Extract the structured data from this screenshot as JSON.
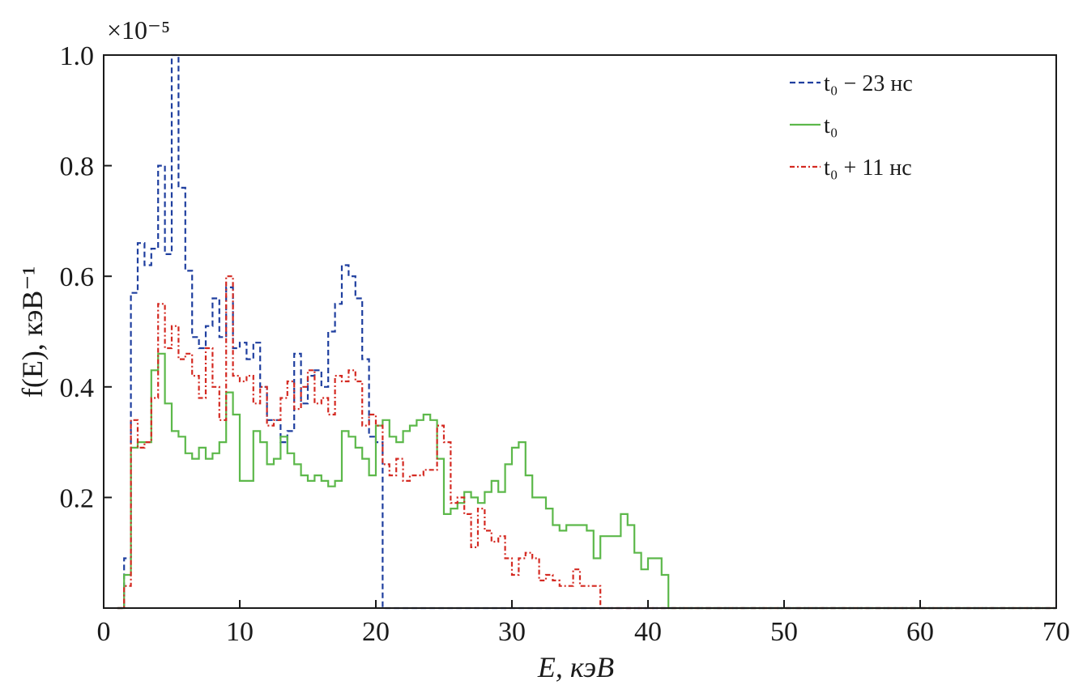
{
  "chart_data": {
    "type": "line",
    "title": "",
    "xlabel": "E, кэВ",
    "ylabel": "f(E), кэВ⁻¹",
    "xlim": [
      0,
      70
    ],
    "ylim": [
      0,
      1.0
    ],
    "y_multiplier": "×10⁻⁵",
    "x_ticks": [
      0,
      10,
      20,
      30,
      40,
      50,
      60,
      70
    ],
    "x_tick_labels": [
      "0",
      "10",
      "20",
      "30",
      "40",
      "50",
      "60",
      "70"
    ],
    "y_ticks": [
      0.2,
      0.4,
      0.6,
      0.8,
      1.0
    ],
    "y_tick_labels": [
      "0.2",
      "0.4",
      "0.6",
      "0.8",
      "1.0"
    ],
    "grid": false,
    "legend_position": "top-right",
    "step": "post",
    "series": [
      {
        "name": "t₀ − 23 нс",
        "color": "#1f3f9f",
        "dash": "dashed",
        "x": [
          1.0,
          1.5,
          2.0,
          2.5,
          3.0,
          3.5,
          4.0,
          4.5,
          5.0,
          5.5,
          6.0,
          6.5,
          7.0,
          7.5,
          8.0,
          8.5,
          9.0,
          9.5,
          10.0,
          10.5,
          11.0,
          11.5,
          12.0,
          12.5,
          13.0,
          13.5,
          14.0,
          14.5,
          15.0,
          15.5,
          16.0,
          16.5,
          17.0,
          17.5,
          18.0,
          18.5,
          19.0,
          19.5,
          20.0,
          20.5,
          21.0,
          70.0
        ],
        "values": [
          0.0,
          0.09,
          0.57,
          0.66,
          0.62,
          0.65,
          0.8,
          0.64,
          1.0,
          0.76,
          0.61,
          0.49,
          0.47,
          0.51,
          0.56,
          0.49,
          0.58,
          0.47,
          0.48,
          0.45,
          0.48,
          0.4,
          0.34,
          0.34,
          0.3,
          0.32,
          0.46,
          0.37,
          0.42,
          0.43,
          0.4,
          0.5,
          0.55,
          0.62,
          0.6,
          0.56,
          0.45,
          0.31,
          0.3,
          0.0,
          0.0,
          0.0
        ]
      },
      {
        "name": "t₀",
        "color": "#5cb84a",
        "dash": "solid",
        "x": [
          1.0,
          1.5,
          2.0,
          2.5,
          3.0,
          3.5,
          4.0,
          4.5,
          5.0,
          5.5,
          6.0,
          6.5,
          7.0,
          7.5,
          8.0,
          8.5,
          9.0,
          9.5,
          10.0,
          10.5,
          11.0,
          11.5,
          12.0,
          12.5,
          13.0,
          13.5,
          14.0,
          14.5,
          15.0,
          15.5,
          16.0,
          16.5,
          17.0,
          17.5,
          18.0,
          18.5,
          19.0,
          19.5,
          20.0,
          20.5,
          21.0,
          21.5,
          22.0,
          22.5,
          23.0,
          23.5,
          24.0,
          24.5,
          25.0,
          25.5,
          26.0,
          26.5,
          27.0,
          27.5,
          28.0,
          28.5,
          29.0,
          29.5,
          30.0,
          30.5,
          31.0,
          31.5,
          32.0,
          32.5,
          33.0,
          33.5,
          34.0,
          34.5,
          35.0,
          35.5,
          36.0,
          36.5,
          37.0,
          37.5,
          38.0,
          38.5,
          39.0,
          39.5,
          40.0,
          40.5,
          41.0,
          41.5,
          42.0,
          42.5,
          43.0,
          43.5,
          70.0
        ],
        "values": [
          0.0,
          0.06,
          0.29,
          0.3,
          0.3,
          0.43,
          0.46,
          0.37,
          0.32,
          0.31,
          0.28,
          0.27,
          0.29,
          0.27,
          0.28,
          0.3,
          0.39,
          0.35,
          0.23,
          0.23,
          0.32,
          0.3,
          0.26,
          0.27,
          0.31,
          0.28,
          0.26,
          0.24,
          0.23,
          0.24,
          0.23,
          0.22,
          0.23,
          0.32,
          0.31,
          0.29,
          0.27,
          0.24,
          0.33,
          0.34,
          0.31,
          0.3,
          0.32,
          0.33,
          0.34,
          0.35,
          0.34,
          0.27,
          0.17,
          0.18,
          0.19,
          0.21,
          0.2,
          0.19,
          0.21,
          0.23,
          0.21,
          0.26,
          0.29,
          0.3,
          0.24,
          0.2,
          0.2,
          0.18,
          0.15,
          0.14,
          0.15,
          0.15,
          0.15,
          0.14,
          0.09,
          0.13,
          0.13,
          0.13,
          0.17,
          0.15,
          0.1,
          0.07,
          0.09,
          0.09,
          0.06,
          0.0,
          0.0,
          0.0,
          0.0,
          0.0,
          0.0
        ]
      },
      {
        "name": "t₀ + 11 нс",
        "color": "#d42a22",
        "dash": "dashdot",
        "x": [
          1.0,
          1.5,
          2.0,
          2.5,
          3.0,
          3.5,
          4.0,
          4.5,
          5.0,
          5.5,
          6.0,
          6.5,
          7.0,
          7.5,
          8.0,
          8.5,
          9.0,
          9.5,
          10.0,
          10.5,
          11.0,
          11.5,
          12.0,
          12.5,
          13.0,
          13.5,
          14.0,
          14.5,
          15.0,
          15.5,
          16.0,
          16.5,
          17.0,
          17.5,
          18.0,
          18.5,
          19.0,
          19.5,
          20.0,
          20.5,
          21.0,
          21.5,
          22.0,
          22.5,
          23.0,
          23.5,
          24.0,
          24.5,
          25.0,
          25.5,
          26.0,
          26.5,
          27.0,
          27.5,
          28.0,
          28.5,
          29.0,
          29.5,
          30.0,
          30.5,
          31.0,
          31.5,
          32.0,
          32.5,
          33.0,
          33.5,
          34.0,
          34.5,
          35.0,
          35.5,
          36.0,
          36.5,
          70.0
        ],
        "values": [
          0.0,
          0.04,
          0.34,
          0.29,
          0.3,
          0.38,
          0.55,
          0.47,
          0.51,
          0.45,
          0.46,
          0.42,
          0.38,
          0.47,
          0.4,
          0.34,
          0.6,
          0.42,
          0.41,
          0.42,
          0.37,
          0.4,
          0.33,
          0.34,
          0.38,
          0.41,
          0.36,
          0.4,
          0.43,
          0.37,
          0.38,
          0.35,
          0.42,
          0.41,
          0.43,
          0.41,
          0.33,
          0.35,
          0.33,
          0.26,
          0.24,
          0.27,
          0.23,
          0.24,
          0.24,
          0.25,
          0.25,
          0.33,
          0.3,
          0.19,
          0.2,
          0.17,
          0.11,
          0.18,
          0.14,
          0.12,
          0.13,
          0.09,
          0.06,
          0.09,
          0.1,
          0.09,
          0.05,
          0.06,
          0.05,
          0.04,
          0.04,
          0.07,
          0.04,
          0.04,
          0.04,
          0.0,
          0.0
        ]
      }
    ]
  }
}
